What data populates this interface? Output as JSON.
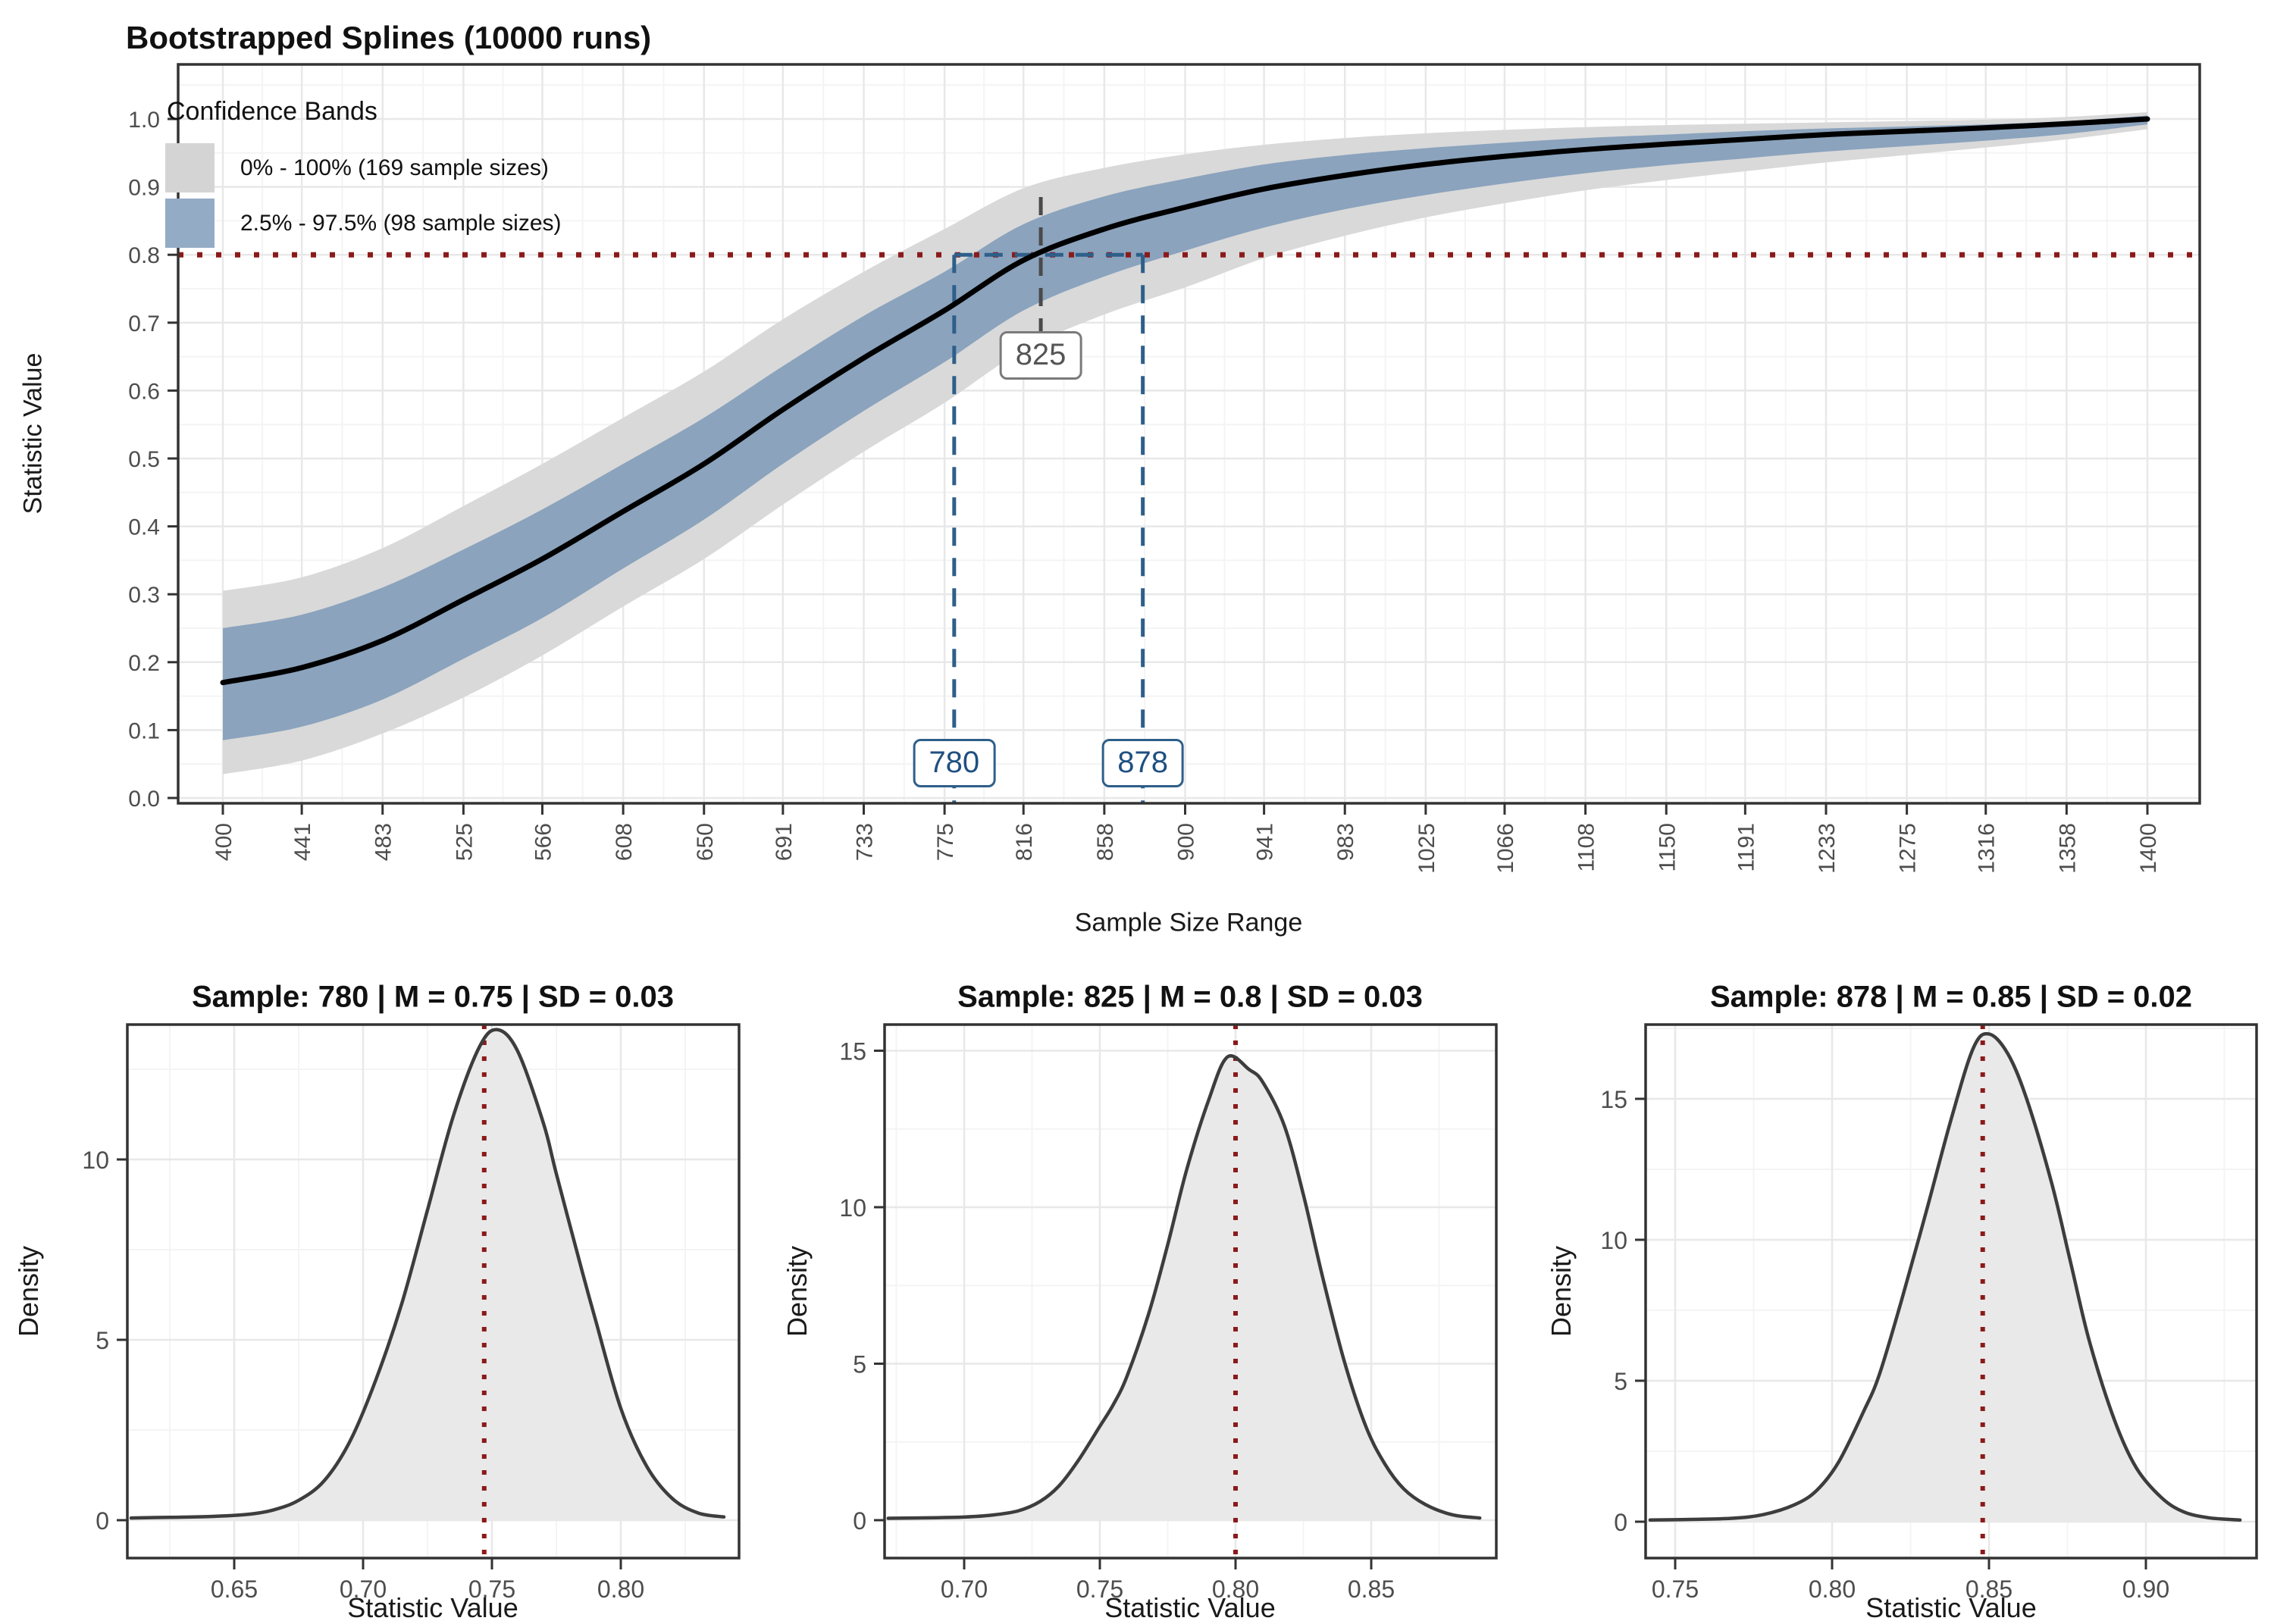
{
  "chart_data": [
    {
      "id": "main-spline-plot",
      "type": "area",
      "title": "Bootstrapped Splines (10000 runs)",
      "xlabel": "Sample Size Range",
      "ylabel": "Statistic Value",
      "xticks": [
        "400",
        "441",
        "483",
        "525",
        "566",
        "608",
        "650",
        "691",
        "733",
        "775",
        "816",
        "858",
        "900",
        "941",
        "983",
        "1025",
        "1066",
        "1108",
        "1150",
        "1191",
        "1233",
        "1275",
        "1316",
        "1358",
        "1400"
      ],
      "yticks": [
        "0.0",
        "0.1",
        "0.2",
        "0.3",
        "0.4",
        "0.5",
        "0.6",
        "0.7",
        "0.8",
        "0.9",
        "1.0"
      ],
      "xlim": [
        377,
        1427
      ],
      "ylim": [
        -0.008,
        1.08
      ],
      "grid": "major+minor",
      "legend": {
        "title": "Confidence Bands",
        "position": "top-left",
        "entries": [
          {
            "label": "0% - 100% (169 sample sizes)",
            "color": "#d4d4d4"
          },
          {
            "label": "2.5% - 97.5% (98 sample sizes)",
            "color": "#94abc5"
          }
        ]
      },
      "threshold_line": {
        "y": 0.8,
        "color": "#8b1a1a",
        "style": "dotted"
      },
      "band_link": {
        "y": 0.8,
        "x1": 780,
        "x2": 878,
        "color": "#2e5f8a",
        "style": "dashed"
      },
      "annotations": [
        {
          "text": "825",
          "x": 825,
          "y": 0.652,
          "line_from": 0.885,
          "line_to": 0.66,
          "line_color": "#4a4a4a",
          "text_color": "#555555",
          "border_color": "#7a7a7a"
        },
        {
          "text": "780",
          "x": 780,
          "y": 0.051,
          "line_from": 0.8,
          "line_to": -0.008,
          "line_color": "#2e5f8a",
          "text_color": "#1f5080",
          "border_color": "#2e5f8a"
        },
        {
          "text": "878",
          "x": 878,
          "y": 0.051,
          "line_from": 0.8,
          "line_to": -0.008,
          "line_color": "#2e5f8a",
          "text_color": "#1f5080",
          "border_color": "#2e5f8a"
        }
      ],
      "series_colors": {
        "curve": "#000000",
        "inner_band": "#8ba3bd",
        "outer_band": "#d9d9d9"
      },
      "points": [
        {
          "x": 400,
          "mean": 0.17,
          "blue": [
            0.085,
            0.25
          ],
          "gray": [
            0.035,
            0.305
          ]
        },
        {
          "x": 441,
          "mean": 0.192,
          "blue": [
            0.105,
            0.27
          ],
          "gray": [
            0.055,
            0.325
          ]
        },
        {
          "x": 483,
          "mean": 0.232,
          "blue": [
            0.145,
            0.31
          ],
          "gray": [
            0.095,
            0.368
          ]
        },
        {
          "x": 525,
          "mean": 0.292,
          "blue": [
            0.205,
            0.366
          ],
          "gray": [
            0.148,
            0.43
          ]
        },
        {
          "x": 566,
          "mean": 0.352,
          "blue": [
            0.265,
            0.425
          ],
          "gray": [
            0.21,
            0.492
          ]
        },
        {
          "x": 608,
          "mean": 0.422,
          "blue": [
            0.338,
            0.492
          ],
          "gray": [
            0.282,
            0.56
          ]
        },
        {
          "x": 650,
          "mean": 0.492,
          "blue": [
            0.41,
            0.56
          ],
          "gray": [
            0.352,
            0.628
          ]
        },
        {
          "x": 691,
          "mean": 0.572,
          "blue": [
            0.492,
            0.636
          ],
          "gray": [
            0.432,
            0.705
          ]
        },
        {
          "x": 733,
          "mean": 0.648,
          "blue": [
            0.57,
            0.71
          ],
          "gray": [
            0.51,
            0.775
          ]
        },
        {
          "x": 775,
          "mean": 0.718,
          "blue": [
            0.642,
            0.775
          ],
          "gray": [
            0.582,
            0.838
          ]
        },
        {
          "x": 816,
          "mean": 0.792,
          "blue": [
            0.718,
            0.845
          ],
          "gray": [
            0.66,
            0.898
          ]
        },
        {
          "x": 858,
          "mean": 0.838,
          "blue": [
            0.768,
            0.886
          ],
          "gray": [
            0.712,
            0.928
          ]
        },
        {
          "x": 900,
          "mean": 0.87,
          "blue": [
            0.806,
            0.912
          ],
          "gray": [
            0.752,
            0.948
          ]
        },
        {
          "x": 941,
          "mean": 0.897,
          "blue": [
            0.84,
            0.933
          ],
          "gray": [
            0.795,
            0.962
          ]
        },
        {
          "x": 983,
          "mean": 0.917,
          "blue": [
            0.867,
            0.947
          ],
          "gray": [
            0.828,
            0.972
          ]
        },
        {
          "x": 1025,
          "mean": 0.933,
          "blue": [
            0.888,
            0.957
          ],
          "gray": [
            0.855,
            0.979
          ]
        },
        {
          "x": 1066,
          "mean": 0.945,
          "blue": [
            0.905,
            0.965
          ],
          "gray": [
            0.876,
            0.984
          ]
        },
        {
          "x": 1108,
          "mean": 0.955,
          "blue": [
            0.92,
            0.972
          ],
          "gray": [
            0.895,
            0.988
          ]
        },
        {
          "x": 1150,
          "mean": 0.963,
          "blue": [
            0.932,
            0.977
          ],
          "gray": [
            0.91,
            0.991
          ]
        },
        {
          "x": 1191,
          "mean": 0.97,
          "blue": [
            0.942,
            0.982
          ],
          "gray": [
            0.923,
            0.993
          ]
        },
        {
          "x": 1233,
          "mean": 0.977,
          "blue": [
            0.952,
            0.986
          ],
          "gray": [
            0.936,
            0.995
          ]
        },
        {
          "x": 1275,
          "mean": 0.982,
          "blue": [
            0.96,
            0.989
          ],
          "gray": [
            0.947,
            0.997
          ]
        },
        {
          "x": 1316,
          "mean": 0.987,
          "blue": [
            0.968,
            0.992
          ],
          "gray": [
            0.958,
            0.999
          ]
        },
        {
          "x": 1358,
          "mean": 0.993,
          "blue": [
            0.978,
            0.997
          ],
          "gray": [
            0.97,
            1.003
          ]
        },
        {
          "x": 1400,
          "mean": 1.0,
          "blue": [
            0.992,
            1.005
          ],
          "gray": [
            0.985,
            1.01
          ]
        }
      ]
    },
    {
      "id": "density-780",
      "type": "area",
      "title": "Sample: 780 | M = 0.75 | SD = 0.03",
      "xlabel": "Statistic Value",
      "ylabel": "Density",
      "xticks": [
        "0.65",
        "0.70",
        "0.75",
        "0.80"
      ],
      "yticks": [
        "0",
        "5",
        "10"
      ],
      "mean_line_x": 0.747,
      "line_color": "#3d3d3d",
      "fill_color": "#e9e9e9",
      "mean_line_color": "#8b1a1a",
      "points": [
        [
          0.61,
          0.06
        ],
        [
          0.625,
          0.08
        ],
        [
          0.64,
          0.1
        ],
        [
          0.655,
          0.16
        ],
        [
          0.665,
          0.28
        ],
        [
          0.675,
          0.55
        ],
        [
          0.685,
          1.1
        ],
        [
          0.695,
          2.2
        ],
        [
          0.705,
          3.9
        ],
        [
          0.715,
          6.0
        ],
        [
          0.725,
          8.6
        ],
        [
          0.735,
          11.2
        ],
        [
          0.745,
          13.1
        ],
        [
          0.752,
          13.6
        ],
        [
          0.76,
          13.0
        ],
        [
          0.77,
          11.0
        ],
        [
          0.775,
          9.6
        ],
        [
          0.785,
          6.9
        ],
        [
          0.79,
          5.6
        ],
        [
          0.8,
          3.1
        ],
        [
          0.81,
          1.5
        ],
        [
          0.82,
          0.6
        ],
        [
          0.83,
          0.2
        ],
        [
          0.84,
          0.09
        ]
      ]
    },
    {
      "id": "density-825",
      "type": "area",
      "title": "Sample: 825 | M = 0.8 | SD = 0.03",
      "xlabel": "Statistic Value",
      "ylabel": "Density",
      "xticks": [
        "0.70",
        "0.75",
        "0.80",
        "0.85"
      ],
      "yticks": [
        "0",
        "5",
        "10",
        "15"
      ],
      "mean_line_x": 0.8,
      "line_color": "#3d3d3d",
      "fill_color": "#e9e9e9",
      "mean_line_color": "#8b1a1a",
      "points": [
        [
          0.672,
          0.06
        ],
        [
          0.69,
          0.08
        ],
        [
          0.7,
          0.1
        ],
        [
          0.71,
          0.16
        ],
        [
          0.72,
          0.3
        ],
        [
          0.728,
          0.6
        ],
        [
          0.735,
          1.1
        ],
        [
          0.742,
          1.9
        ],
        [
          0.75,
          3.0
        ],
        [
          0.755,
          3.7
        ],
        [
          0.76,
          4.6
        ],
        [
          0.768,
          6.6
        ],
        [
          0.775,
          8.8
        ],
        [
          0.782,
          11.2
        ],
        [
          0.79,
          13.4
        ],
        [
          0.797,
          14.8
        ],
        [
          0.805,
          14.4
        ],
        [
          0.81,
          14.0
        ],
        [
          0.818,
          12.6
        ],
        [
          0.825,
          10.4
        ],
        [
          0.832,
          7.8
        ],
        [
          0.84,
          5.1
        ],
        [
          0.848,
          3.0
        ],
        [
          0.855,
          1.8
        ],
        [
          0.862,
          1.0
        ],
        [
          0.87,
          0.5
        ],
        [
          0.88,
          0.17
        ],
        [
          0.89,
          0.07
        ]
      ]
    },
    {
      "id": "density-878",
      "type": "area",
      "title": "Sample: 878 | M = 0.85 | SD = 0.02",
      "xlabel": "Statistic Value",
      "ylabel": "Density",
      "xticks": [
        "0.75",
        "0.80",
        "0.85",
        "0.90"
      ],
      "yticks": [
        "0",
        "5",
        "10",
        "15"
      ],
      "mean_line_x": 0.848,
      "line_color": "#3d3d3d",
      "fill_color": "#e9e9e9",
      "mean_line_color": "#8b1a1a",
      "points": [
        [
          0.742,
          0.06
        ],
        [
          0.755,
          0.08
        ],
        [
          0.768,
          0.12
        ],
        [
          0.778,
          0.25
        ],
        [
          0.788,
          0.6
        ],
        [
          0.795,
          1.1
        ],
        [
          0.802,
          2.1
        ],
        [
          0.81,
          3.9
        ],
        [
          0.815,
          5.2
        ],
        [
          0.822,
          7.8
        ],
        [
          0.83,
          11.0
        ],
        [
          0.838,
          14.3
        ],
        [
          0.845,
          16.8
        ],
        [
          0.85,
          17.3
        ],
        [
          0.856,
          16.6
        ],
        [
          0.862,
          15.0
        ],
        [
          0.87,
          12.0
        ],
        [
          0.876,
          9.2
        ],
        [
          0.882,
          6.4
        ],
        [
          0.89,
          3.6
        ],
        [
          0.897,
          1.9
        ],
        [
          0.905,
          0.85
        ],
        [
          0.912,
          0.35
        ],
        [
          0.92,
          0.14
        ],
        [
          0.93,
          0.06
        ]
      ]
    }
  ]
}
